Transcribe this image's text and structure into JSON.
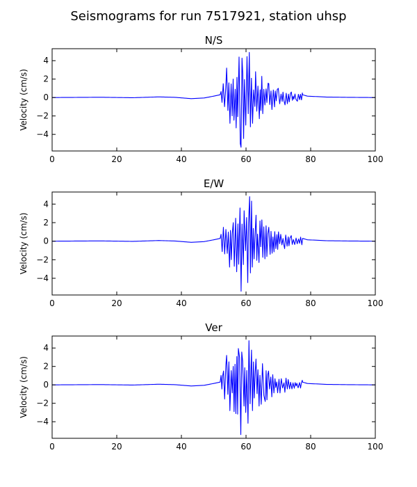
{
  "figure": {
    "title": "Seismograms for run 7517921, station uhsp"
  },
  "chart_data": [
    {
      "type": "line",
      "title": "N/S",
      "xlabel": "",
      "ylabel": "Velocity (cm/s)",
      "xlim": [
        0,
        100
      ],
      "ylim": [
        -5.8,
        5.3
      ],
      "xticks": [
        0,
        20,
        40,
        60,
        80,
        100
      ],
      "yticks": [
        -4,
        -2,
        0,
        2,
        4
      ],
      "grid": false,
      "color": "#0000ff",
      "seed": 11,
      "quiet": [
        [
          0,
          0
        ],
        [
          15,
          0.03
        ],
        [
          25,
          -0.02
        ],
        [
          33,
          0.07
        ],
        [
          38,
          0.02
        ],
        [
          43,
          -0.12
        ],
        [
          47,
          -0.05
        ],
        [
          50,
          0.15
        ],
        [
          52,
          0.3
        ]
      ],
      "peaks": [
        [
          52,
          0.5
        ],
        [
          53,
          1.5
        ],
        [
          54,
          3.2
        ],
        [
          55,
          -2.8
        ],
        [
          56,
          2.0
        ],
        [
          57,
          -3.3
        ],
        [
          58,
          3.0
        ],
        [
          58.5,
          -5.4
        ],
        [
          59,
          2.6
        ],
        [
          60,
          -3.0
        ],
        [
          61,
          4.9
        ],
        [
          62,
          -2.8
        ],
        [
          63,
          2.8
        ],
        [
          64,
          -2.3
        ],
        [
          65,
          2.3
        ],
        [
          66,
          -1.8
        ],
        [
          67,
          1.5
        ],
        [
          68,
          -1.3
        ],
        [
          70,
          1.0
        ],
        [
          72,
          -0.8
        ],
        [
          74,
          0.6
        ],
        [
          76,
          -0.4
        ],
        [
          77.5,
          0.5
        ]
      ],
      "tail": [
        [
          77.5,
          0.3
        ],
        [
          79,
          0.15
        ],
        [
          85,
          0.05
        ],
        [
          92,
          0.02
        ],
        [
          100,
          0
        ]
      ]
    },
    {
      "type": "line",
      "title": "E/W",
      "xlabel": "",
      "ylabel": "Velocity (cm/s)",
      "xlim": [
        0,
        100
      ],
      "ylim": [
        -5.8,
        5.3
      ],
      "xticks": [
        0,
        20,
        40,
        60,
        80,
        100
      ],
      "yticks": [
        -4,
        -2,
        0,
        2,
        4
      ],
      "grid": false,
      "color": "#0000ff",
      "seed": 23,
      "quiet": [
        [
          0,
          0
        ],
        [
          15,
          0.03
        ],
        [
          25,
          -0.02
        ],
        [
          33,
          0.07
        ],
        [
          38,
          0.02
        ],
        [
          43,
          -0.12
        ],
        [
          47,
          -0.05
        ],
        [
          50,
          0.15
        ],
        [
          52,
          0.3
        ]
      ],
      "peaks": [
        [
          52,
          0.5
        ],
        [
          53,
          1.5
        ],
        [
          54,
          3.2
        ],
        [
          55,
          -2.8
        ],
        [
          56,
          2.0
        ],
        [
          57,
          -3.3
        ],
        [
          58,
          3.0
        ],
        [
          58.5,
          -5.4
        ],
        [
          59,
          2.6
        ],
        [
          60,
          -3.0
        ],
        [
          61,
          4.8
        ],
        [
          62,
          -2.8
        ],
        [
          63,
          2.8
        ],
        [
          64,
          -2.3
        ],
        [
          65,
          2.3
        ],
        [
          66,
          -1.8
        ],
        [
          67,
          1.5
        ],
        [
          68,
          -1.3
        ],
        [
          70,
          1.0
        ],
        [
          72,
          -0.8
        ],
        [
          74,
          0.6
        ],
        [
          76,
          -0.4
        ],
        [
          77.5,
          0.5
        ]
      ],
      "tail": [
        [
          77.5,
          0.3
        ],
        [
          79,
          0.15
        ],
        [
          85,
          0.05
        ],
        [
          92,
          0.02
        ],
        [
          100,
          0
        ]
      ]
    },
    {
      "type": "line",
      "title": "Ver",
      "xlabel": "",
      "ylabel": "Velocity (cm/s)",
      "xlim": [
        0,
        100
      ],
      "ylim": [
        -5.8,
        5.3
      ],
      "xticks": [
        0,
        20,
        40,
        60,
        80,
        100
      ],
      "yticks": [
        -4,
        -2,
        0,
        2,
        4
      ],
      "grid": false,
      "color": "#0000ff",
      "seed": 37,
      "quiet": [
        [
          0,
          0
        ],
        [
          15,
          0.03
        ],
        [
          25,
          -0.02
        ],
        [
          33,
          0.07
        ],
        [
          38,
          0.02
        ],
        [
          43,
          -0.12
        ],
        [
          47,
          -0.05
        ],
        [
          50,
          0.15
        ],
        [
          52,
          0.3
        ]
      ],
      "peaks": [
        [
          52,
          0.5
        ],
        [
          53,
          1.5
        ],
        [
          54,
          3.2
        ],
        [
          55,
          -2.8
        ],
        [
          56,
          2.0
        ],
        [
          57,
          -3.3
        ],
        [
          58,
          3.0
        ],
        [
          58.5,
          -5.4
        ],
        [
          59,
          2.6
        ],
        [
          60,
          -3.0
        ],
        [
          61,
          4.8
        ],
        [
          62,
          -2.8
        ],
        [
          63,
          2.8
        ],
        [
          64,
          -2.3
        ],
        [
          65,
          2.3
        ],
        [
          66,
          -1.8
        ],
        [
          67,
          1.5
        ],
        [
          68,
          -1.3
        ],
        [
          70,
          1.0
        ],
        [
          72,
          -0.8
        ],
        [
          74,
          0.6
        ],
        [
          76,
          -0.4
        ],
        [
          77.5,
          0.5
        ]
      ],
      "tail": [
        [
          77.5,
          0.3
        ],
        [
          79,
          0.15
        ],
        [
          85,
          0.05
        ],
        [
          92,
          0.02
        ],
        [
          100,
          0
        ]
      ]
    }
  ]
}
